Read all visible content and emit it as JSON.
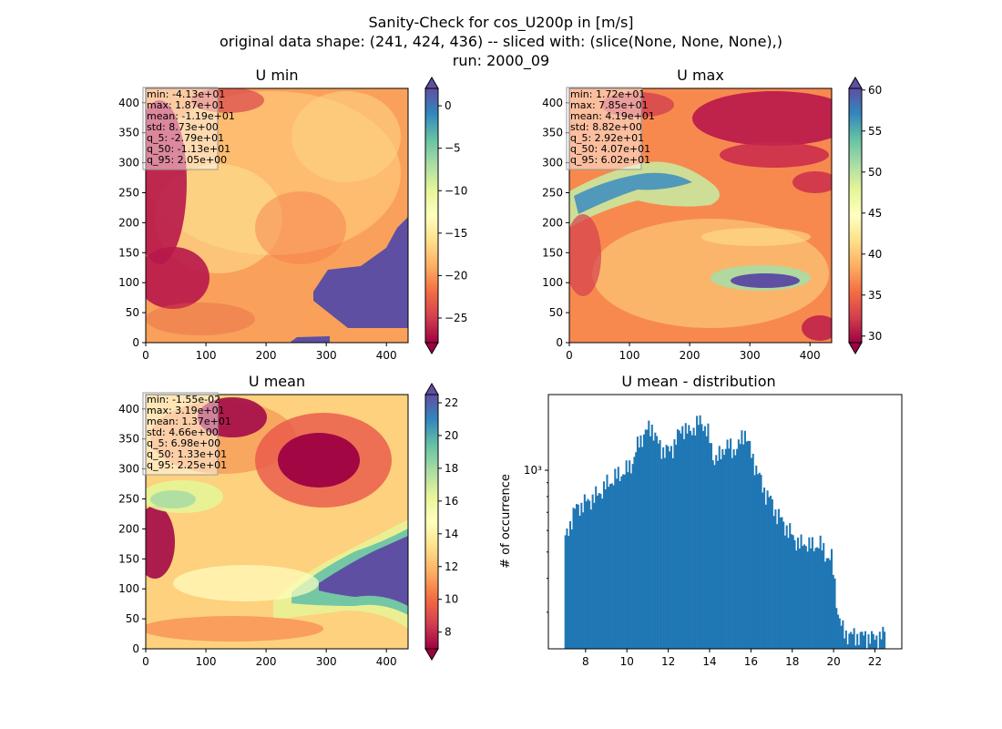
{
  "figure": {
    "title_lines": [
      "Sanity-Check for cos_U200p in [m/s]",
      "original data shape: (241, 424, 436) -- sliced with: (slice(None, None, None),)",
      "run: 2000_09"
    ]
  },
  "colormap": {
    "name": "Spectral",
    "stops": [
      "#9e0142",
      "#d53e4f",
      "#f46d43",
      "#fdae61",
      "#fee08b",
      "#ffffbf",
      "#e6f598",
      "#abdda4",
      "#66c2a5",
      "#3288bd",
      "#5e4fa2"
    ]
  },
  "chart_data": [
    {
      "type": "heatmap",
      "title": "U min",
      "xlim": [
        0,
        436
      ],
      "ylim": [
        0,
        424
      ],
      "xticks": [
        "0",
        "100",
        "200",
        "300",
        "400"
      ],
      "yticks": [
        "0",
        "50",
        "100",
        "150",
        "200",
        "250",
        "300",
        "350",
        "400"
      ],
      "colorbar": {
        "vmin": -27.9,
        "vmax": 2.05,
        "ticks": [
          "−25",
          "−20",
          "−15",
          "−10",
          "−5",
          "0"
        ],
        "tick_values": [
          -25,
          -20,
          -15,
          -10,
          -5,
          0
        ]
      },
      "stats": [
        "min: -4.13e+01",
        "max: 1.87e+01",
        "mean: -1.19e+01",
        "std: 8.73e+00",
        "q_5: -2.79e+01",
        "q_50: -1.13e+01",
        "q_95: 2.05e+00"
      ]
    },
    {
      "type": "heatmap",
      "title": "U max",
      "xlim": [
        0,
        436
      ],
      "ylim": [
        0,
        424
      ],
      "xticks": [
        "0",
        "100",
        "200",
        "300",
        "400"
      ],
      "yticks": [
        "0",
        "50",
        "100",
        "150",
        "200",
        "250",
        "300",
        "350",
        "400"
      ],
      "colorbar": {
        "vmin": 29.2,
        "vmax": 60.2,
        "ticks": [
          "30",
          "35",
          "40",
          "45",
          "50",
          "55",
          "60"
        ],
        "tick_values": [
          30,
          35,
          40,
          45,
          50,
          55,
          60
        ]
      },
      "stats": [
        "min: 1.72e+01",
        "max: 7.85e+01",
        "mean: 4.19e+01",
        "std: 8.82e+00",
        "q_5: 2.92e+01",
        "q_50: 4.07e+01",
        "q_95: 6.02e+01"
      ]
    },
    {
      "type": "heatmap",
      "title": "U mean",
      "xlim": [
        0,
        436
      ],
      "ylim": [
        0,
        424
      ],
      "xticks": [
        "0",
        "100",
        "200",
        "300",
        "400"
      ],
      "yticks": [
        "0",
        "50",
        "100",
        "150",
        "200",
        "250",
        "300",
        "350",
        "400"
      ],
      "colorbar": {
        "vmin": 6.98,
        "vmax": 22.5,
        "ticks": [
          "8",
          "10",
          "12",
          "14",
          "16",
          "18",
          "20",
          "22"
        ],
        "tick_values": [
          8,
          10,
          12,
          14,
          16,
          18,
          20,
          22
        ]
      },
      "stats": [
        "min: -1.55e-02",
        "max: 3.19e+01",
        "mean: 1.37e+01",
        "std: 4.66e+00",
        "q_5: 6.98e+00",
        "q_50: 1.33e+01",
        "q_95: 2.25e+01"
      ]
    },
    {
      "type": "bar",
      "title": "U mean - distribution",
      "ylabel": "# of occurrence",
      "yscale": "log",
      "xlim": [
        6.2,
        23.3
      ],
      "ylim": [
        220,
        1900
      ],
      "xticks": [
        8,
        10,
        12,
        14,
        16,
        18,
        20,
        22
      ],
      "xtick_labels": [
        "8",
        "10",
        "12",
        "14",
        "16",
        "18",
        "20",
        "22"
      ],
      "yticks_major": [
        1000
      ],
      "ytick_labels": [
        "10³"
      ],
      "yticks_minor": [
        300,
        400,
        500,
        600,
        700,
        800,
        900
      ],
      "bin_range": [
        6.98,
        22.5
      ],
      "profile_x": [
        6.98,
        7.2,
        7.5,
        8.0,
        8.5,
        9.0,
        9.5,
        10.0,
        10.3,
        10.6,
        10.9,
        11.2,
        11.5,
        11.8,
        12.1,
        12.4,
        12.7,
        13.0,
        13.3,
        13.6,
        13.9,
        14.2,
        14.5,
        14.8,
        15.1,
        15.4,
        15.7,
        16.0,
        16.3,
        16.6,
        16.9,
        17.2,
        17.5,
        17.8,
        18.1,
        18.4,
        18.7,
        19.0,
        19.3,
        19.6,
        19.9,
        20.2,
        20.4,
        20.6,
        21.0,
        21.5,
        22.0,
        22.5
      ],
      "profile_y": [
        540,
        620,
        720,
        760,
        800,
        880,
        950,
        1000,
        1080,
        1280,
        1380,
        1450,
        1250,
        1180,
        1180,
        1300,
        1450,
        1370,
        1450,
        1520,
        1380,
        1100,
        1120,
        1250,
        1180,
        1220,
        1400,
        1150,
        1000,
        850,
        790,
        700,
        650,
        600,
        560,
        530,
        540,
        520,
        540,
        490,
        470,
        300,
        260,
        250,
        245,
        245,
        240,
        250
      ]
    }
  ]
}
